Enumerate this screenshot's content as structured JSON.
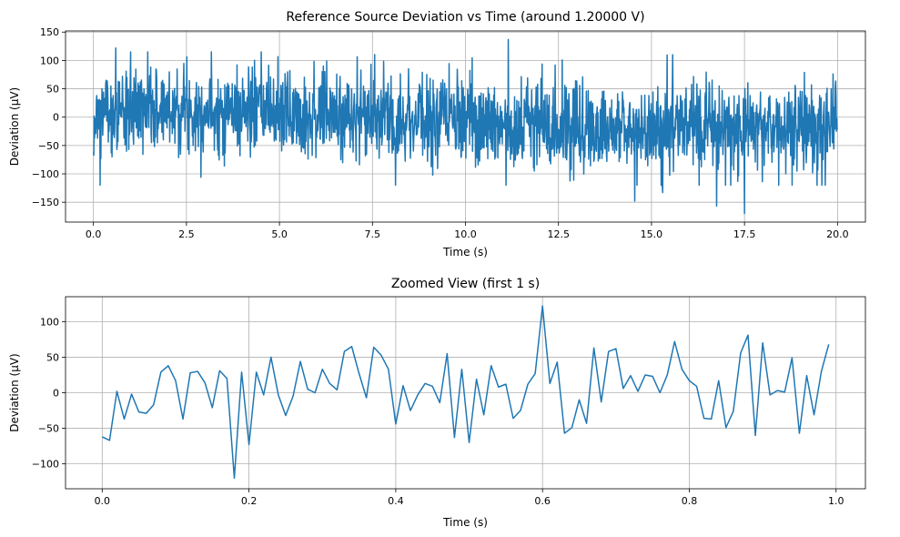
{
  "chart_data": [
    {
      "type": "line",
      "title": "Reference Source Deviation vs Time (around 1.20000 V)",
      "xlabel": "Time (s)",
      "ylabel": "Deviation (µV)",
      "xlim": [
        -0.75,
        20.75
      ],
      "ylim": [
        -185,
        152
      ],
      "xticks": [
        0.0,
        2.5,
        5.0,
        7.5,
        10.0,
        12.5,
        15.0,
        17.5,
        20.0
      ],
      "xtick_labels": [
        "0.0",
        "2.5",
        "5.0",
        "7.5",
        "10.0",
        "12.5",
        "15.0",
        "17.5",
        "20.0"
      ],
      "yticks": [
        -150,
        -100,
        -50,
        0,
        50,
        100,
        150
      ],
      "ytick_labels": [
        "−150",
        "−100",
        "−50",
        "0",
        "50",
        "100",
        "150"
      ],
      "grid": true,
      "line_color": "#1f77b4",
      "series": [
        {
          "name": "deviation",
          "sample_interval": 0.01,
          "x_start": 0.0,
          "x_end": 19.99,
          "n_points": 2000,
          "mean_profile": {
            "x": [
              0,
              2,
              4,
              6,
              8,
              10,
              12,
              14,
              16,
              18,
              20
            ],
            "y": [
              5,
              15,
              12,
              5,
              0,
              -8,
              -15,
              -20,
              -18,
              -15,
              -10
            ]
          },
          "std": 38,
          "seed": 7,
          "notable_points": {
            "x": [
              0.18,
              0.6,
              11.15,
              14.55,
              15.3,
              16.75,
              17.5
            ],
            "y": [
              -120,
              122,
              137,
              -148,
              -133,
              -157,
              -170
            ]
          }
        }
      ]
    },
    {
      "type": "line",
      "title": "Zoomed View (first 1 s)",
      "xlabel": "Time (s)",
      "ylabel": "Deviation (µV)",
      "xlim": [
        -0.05,
        1.04
      ],
      "ylim": [
        -135,
        135
      ],
      "xticks": [
        0.0,
        0.2,
        0.4,
        0.6,
        0.8,
        1.0
      ],
      "xtick_labels": [
        "0.0",
        "0.2",
        "0.4",
        "0.6",
        "0.8",
        "1.0"
      ],
      "yticks": [
        -100,
        -50,
        0,
        50,
        100
      ],
      "ytick_labels": [
        "−100",
        "−50",
        "0",
        "50",
        "100"
      ],
      "grid": true,
      "line_color": "#1f77b4",
      "series": [
        {
          "name": "deviation",
          "x_start": 0.0,
          "x_step": 0.01,
          "values": [
            -62,
            -67,
            2,
            -37,
            -2,
            -27,
            -29,
            -17,
            29,
            38,
            17,
            -37,
            28,
            30,
            14,
            -21,
            31,
            20,
            -120,
            29,
            -73,
            29,
            -3,
            50,
            -3,
            -32,
            -5,
            44,
            5,
            0,
            33,
            13,
            4,
            58,
            65,
            27,
            -7,
            64,
            53,
            33,
            -44,
            10,
            -25,
            -3,
            13,
            9,
            -14,
            55,
            -63,
            33,
            -70,
            19,
            -31,
            38,
            8,
            12,
            -36,
            -25,
            12,
            27,
            122,
            13,
            43,
            -57,
            -49,
            -10,
            -43,
            63,
            -13,
            58,
            62,
            6,
            24,
            2,
            25,
            23,
            0,
            25,
            72,
            33,
            17,
            9,
            -36,
            -37,
            17,
            -49,
            -26,
            56,
            81,
            -60,
            70,
            -3,
            3,
            1,
            49,
            -57,
            24,
            -31,
            30,
            68
          ]
        }
      ]
    }
  ]
}
